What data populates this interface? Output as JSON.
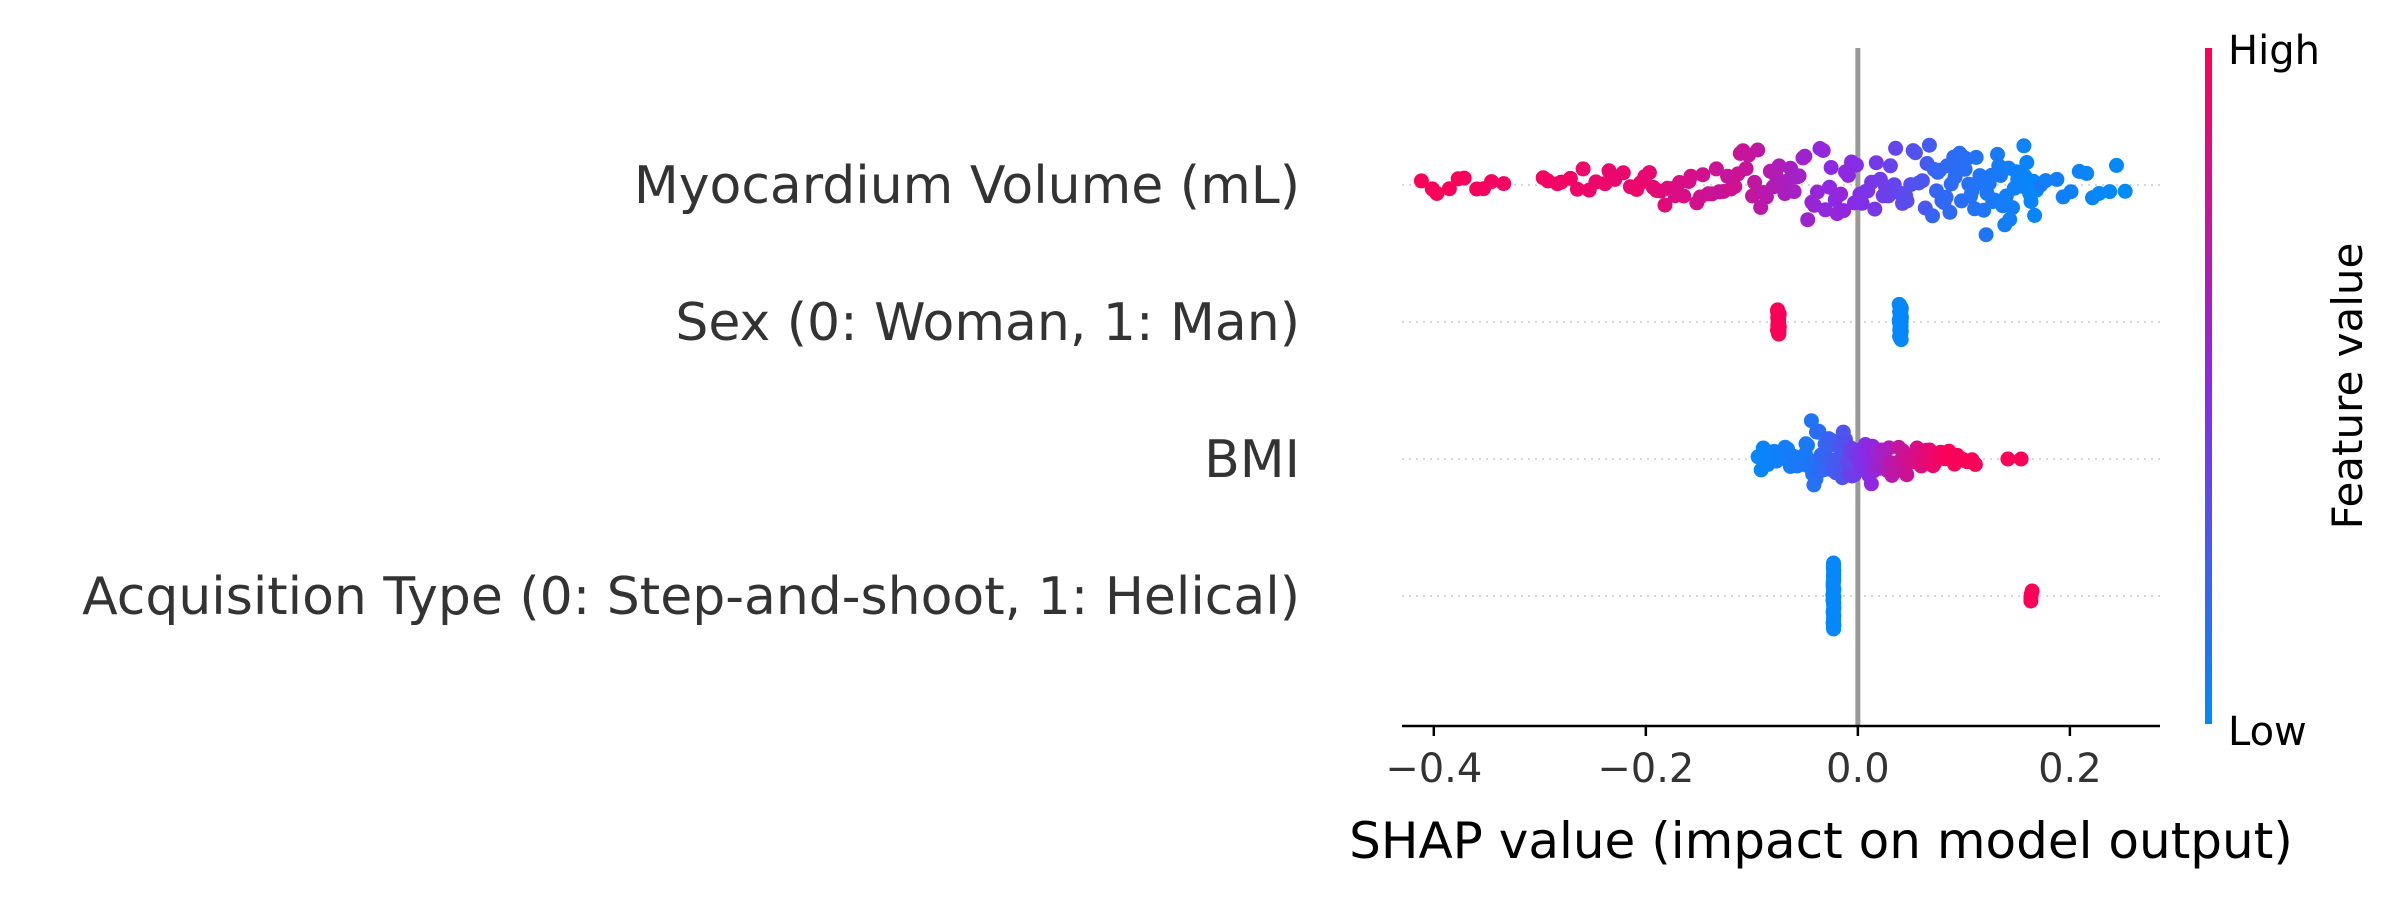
{
  "chart_data": {
    "type": "scatter",
    "subtype": "shap-beeswarm",
    "xlabel": "SHAP value (impact on model output)",
    "xlim": [
      -0.43,
      0.285
    ],
    "xticks": [
      {
        "value": -0.4,
        "label": "−0.4"
      },
      {
        "value": -0.2,
        "label": "−0.2"
      },
      {
        "value": 0.0,
        "label": "0.0"
      },
      {
        "value": 0.2,
        "label": "0.2"
      }
    ],
    "colorbar": {
      "title": "Feature value",
      "high_label": "High",
      "low_label": "Low",
      "high_color": "#ff0052",
      "mid_color": "#8a2ae6",
      "low_color": "#008bfb"
    },
    "grid": false,
    "zero_line_color": "#999999",
    "features": [
      {
        "name": "Myocardium Volume (mL)",
        "clusters": [
          {
            "min": -0.415,
            "max": -0.33,
            "count": 10,
            "color_from": 0.98,
            "color_to": 0.95,
            "spread": 0.25
          },
          {
            "min": -0.3,
            "max": -0.21,
            "count": 14,
            "color_from": 0.95,
            "color_to": 0.9,
            "spread": 0.45
          },
          {
            "min": -0.21,
            "max": -0.12,
            "count": 24,
            "color_from": 0.92,
            "color_to": 0.75,
            "spread": 0.55
          },
          {
            "min": -0.12,
            "max": -0.02,
            "count": 36,
            "color_from": 0.8,
            "color_to": 0.5,
            "spread": 0.85
          },
          {
            "min": -0.02,
            "max": 0.07,
            "count": 34,
            "color_from": 0.55,
            "color_to": 0.25,
            "spread": 0.85
          },
          {
            "min": 0.07,
            "max": 0.17,
            "count": 56,
            "color_from": 0.2,
            "color_to": 0.02,
            "spread": 1.0
          },
          {
            "min": 0.17,
            "max": 0.255,
            "count": 12,
            "color_from": 0.08,
            "color_to": 0.0,
            "spread": 0.4
          }
        ]
      },
      {
        "name": "Sex (0: Woman, 1: Man)",
        "clusters": [
          {
            "min": -0.076,
            "max": -0.074,
            "count": 24,
            "color_from": 0.98,
            "color_to": 0.98,
            "spread": 0.22,
            "column": true
          },
          {
            "min": 0.039,
            "max": 0.041,
            "count": 30,
            "color_from": 0.02,
            "color_to": 0.02,
            "spread": 0.32,
            "column": true
          }
        ]
      },
      {
        "name": "BMI",
        "clusters": [
          {
            "min": -0.095,
            "max": -0.05,
            "count": 18,
            "color_from": 0.02,
            "color_to": 0.1,
            "spread": 0.3
          },
          {
            "min": -0.05,
            "max": -0.01,
            "count": 40,
            "color_from": 0.08,
            "color_to": 0.3,
            "spread": 0.75
          },
          {
            "min": -0.01,
            "max": 0.03,
            "count": 36,
            "color_from": 0.35,
            "color_to": 0.65,
            "spread": 0.55
          },
          {
            "min": 0.03,
            "max": 0.08,
            "count": 26,
            "color_from": 0.7,
            "color_to": 0.95,
            "spread": 0.35
          },
          {
            "min": 0.08,
            "max": 0.115,
            "count": 8,
            "color_from": 0.97,
            "color_to": 0.98,
            "spread": 0.2
          },
          {
            "min": 0.14,
            "max": 0.165,
            "count": 2,
            "color_from": 0.98,
            "color_to": 0.98,
            "spread": 0.0
          }
        ]
      },
      {
        "name": "Acquisition Type (0: Step-and-shoot, 1: Helical)",
        "clusters": [
          {
            "min": -0.0235,
            "max": -0.0225,
            "count": 36,
            "color_from": 0.02,
            "color_to": 0.02,
            "spread": 0.6,
            "column": true
          },
          {
            "min": 0.163,
            "max": 0.165,
            "count": 4,
            "color_from": 0.98,
            "color_to": 0.98,
            "spread": 0.09,
            "column": true
          }
        ]
      }
    ]
  }
}
